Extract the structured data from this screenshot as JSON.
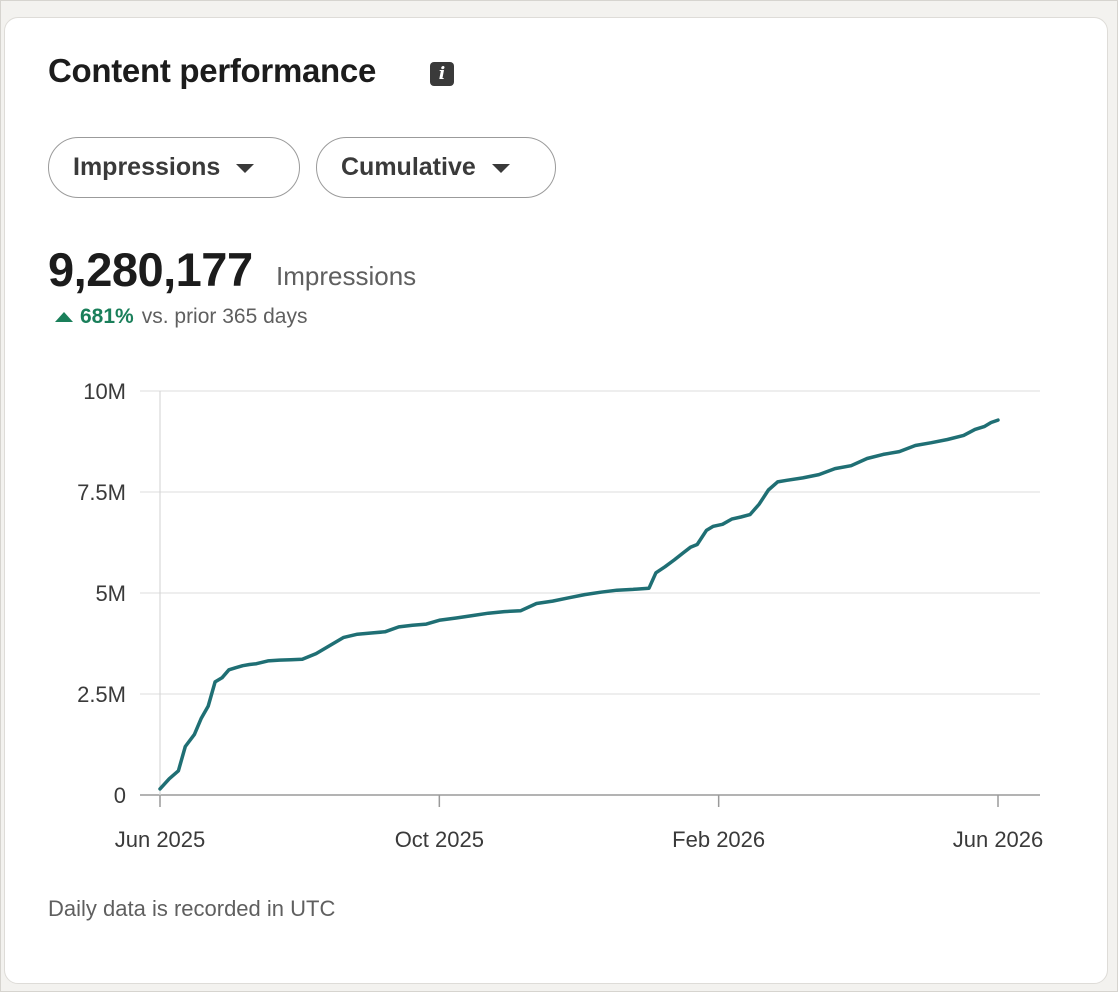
{
  "card": {
    "title": "Content performance",
    "info_icon": "info-icon",
    "metric_dropdown": "Impressions",
    "mode_dropdown": "Cumulative",
    "total_value": "9,280,177",
    "total_unit": "Impressions",
    "change_pct": "681%",
    "change_text": "vs. prior 365 days",
    "footer_note": "Daily data is recorded in UTC",
    "accent_color": "#1a7f5a",
    "line_color": "#1f6f74"
  },
  "chart_data": {
    "type": "line",
    "title": "",
    "xlabel": "",
    "ylabel": "",
    "x_ticks": [
      "Jun 2025",
      "Oct 2025",
      "Feb 2026",
      "Jun 2026"
    ],
    "y_ticks": [
      "0",
      "2.5M",
      "5M",
      "7.5M",
      "10M"
    ],
    "ylim": [
      0,
      10000000
    ],
    "xlim": [
      "2025-06",
      "2026-06"
    ],
    "grid": "horizontal",
    "series": [
      {
        "name": "",
        "x": [
          "2025-06-01",
          "2025-06-05",
          "2025-06-09",
          "2025-06-12",
          "2025-06-16",
          "2025-06-19",
          "2025-06-22",
          "2025-06-25",
          "2025-06-28",
          "2025-07-01",
          "2025-07-04",
          "2025-07-07",
          "2025-07-10",
          "2025-07-13",
          "2025-07-18",
          "2025-07-23",
          "2025-07-28",
          "2025-08-02",
          "2025-08-08",
          "2025-08-14",
          "2025-08-20",
          "2025-08-26",
          "2025-09-01",
          "2025-09-07",
          "2025-09-13",
          "2025-09-19",
          "2025-09-25",
          "2025-10-01",
          "2025-10-08",
          "2025-10-15",
          "2025-10-22",
          "2025-10-29",
          "2025-11-05",
          "2025-11-12",
          "2025-11-19",
          "2025-11-26",
          "2025-12-03",
          "2025-12-10",
          "2025-12-17",
          "2025-12-24",
          "2025-12-31",
          "2026-01-03",
          "2026-01-07",
          "2026-01-11",
          "2026-01-15",
          "2026-01-18",
          "2026-01-21",
          "2026-01-25",
          "2026-01-28",
          "2026-02-01",
          "2026-02-05",
          "2026-02-09",
          "2026-02-13",
          "2026-02-17",
          "2026-02-21",
          "2026-02-25",
          "2026-03-01",
          "2026-03-08",
          "2026-03-15",
          "2026-03-22",
          "2026-03-29",
          "2026-04-05",
          "2026-04-12",
          "2026-04-19",
          "2026-04-26",
          "2026-05-03",
          "2026-05-10",
          "2026-05-17",
          "2026-05-22",
          "2026-05-26",
          "2026-05-29",
          "2026-06-01"
        ],
        "values": [
          150000,
          400000,
          600000,
          1200000,
          1500000,
          1900000,
          2200000,
          2800000,
          2900000,
          3100000,
          3150000,
          3200000,
          3230000,
          3250000,
          3320000,
          3340000,
          3350000,
          3360000,
          3500000,
          3700000,
          3900000,
          3980000,
          4010000,
          4040000,
          4160000,
          4200000,
          4230000,
          4330000,
          4380000,
          4440000,
          4500000,
          4540000,
          4560000,
          4740000,
          4800000,
          4880000,
          4960000,
          5020000,
          5070000,
          5090000,
          5120000,
          5500000,
          5650000,
          5820000,
          6000000,
          6130000,
          6200000,
          6550000,
          6650000,
          6700000,
          6830000,
          6880000,
          6940000,
          7200000,
          7550000,
          7750000,
          7790000,
          7850000,
          7930000,
          8080000,
          8150000,
          8330000,
          8430000,
          8500000,
          8650000,
          8720000,
          8800000,
          8900000,
          9050000,
          9120000,
          9220000,
          9280177
        ]
      }
    ]
  }
}
